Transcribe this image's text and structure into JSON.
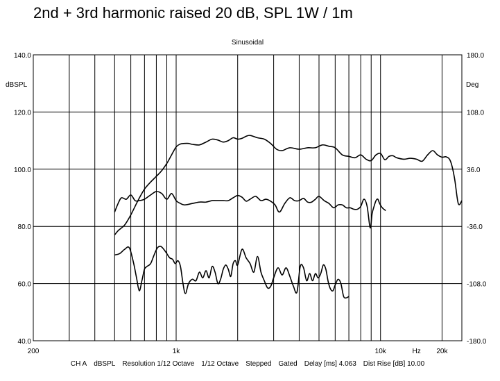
{
  "title": "2nd + 3rd harmonic raised 20 dB, SPL 1W / 1m",
  "chart_data": {
    "type": "line",
    "subtitle": "Sinusoidal",
    "x_scale": "log",
    "xlim": [
      200,
      25000
    ],
    "ylim": [
      40,
      140
    ],
    "y2lim": [
      -180,
      180
    ],
    "ylabel": "dBSPL",
    "y2label": "Deg",
    "xunit": "Hz",
    "grid": true,
    "y_ticks": [
      "140.0",
      "120.0",
      "100.0",
      "80.0",
      "60.0",
      "40.0"
    ],
    "y2_ticks": [
      "180.0",
      "108.0",
      "36.0",
      "-36.0",
      "-108.0",
      "-180.0"
    ],
    "x_tick_labels": [
      {
        "value": 200,
        "label": "200"
      },
      {
        "value": 1000,
        "label": "1k"
      },
      {
        "value": 10000,
        "label": "10k"
      },
      {
        "value": 15000,
        "label": "Hz"
      },
      {
        "value": 20000,
        "label": "20k"
      }
    ],
    "footer_items": [
      "CH A",
      "dBSPL",
      "Resolution 1/12 Octave",
      "1/12 Octave",
      "Stepped",
      "Gated",
      "Delay [ms] 4.063",
      "Dist Rise [dB] 10.00"
    ],
    "series": [
      {
        "x": [
          500,
          520,
          560,
          600,
          650,
          700,
          750,
          800,
          850,
          900,
          950,
          1000,
          1050,
          1100,
          1150,
          1200,
          1300,
          1400,
          1500,
          1600,
          1700,
          1800,
          1900,
          2000,
          2100,
          2200,
          2300,
          2500,
          2700,
          2900,
          3100,
          3300,
          3600,
          4000,
          4400,
          4800,
          5200,
          5600,
          6000,
          6500,
          7000,
          7500,
          8000,
          8500,
          9000,
          9500,
          10000,
          10500,
          11000,
          11500,
          12000,
          13000,
          14000,
          15000,
          16000,
          17000,
          18000,
          19000,
          20000,
          21000,
          22000,
          23000,
          24000,
          25000
        ],
        "values": [
          77,
          78.5,
          80.5,
          84,
          89,
          93,
          95.5,
          97.5,
          99.5,
          102,
          105,
          107.8,
          108.8,
          109,
          109,
          108.7,
          108.5,
          109.5,
          110.5,
          110.2,
          109.5,
          110,
          111,
          110.5,
          110.8,
          111.5,
          111.8,
          111,
          110.5,
          109,
          107,
          106.5,
          107.5,
          107,
          107.5,
          107.5,
          108.5,
          108,
          107.5,
          105,
          104.5,
          104,
          105,
          103.5,
          103,
          105,
          105.5,
          103.3,
          104.5,
          104.7,
          104,
          103.5,
          103.8,
          103.5,
          102.8,
          105,
          106.5,
          105,
          104.2,
          104.3,
          102.8,
          97,
          88,
          89
        ]
      },
      {
        "x": [
          500,
          520,
          540,
          570,
          600,
          630,
          660,
          700,
          750,
          800,
          850,
          900,
          950,
          1000,
          1050,
          1100,
          1200,
          1300,
          1400,
          1500,
          1600,
          1700,
          1800,
          1900,
          2000,
          2100,
          2200,
          2300,
          2450,
          2600,
          2750,
          2900,
          3050,
          3200,
          3400,
          3600,
          3800,
          4000,
          4200,
          4400,
          4600,
          4800,
          5000,
          5300,
          5600,
          5900,
          6200,
          6500,
          6800,
          7100,
          7400,
          7700,
          8000,
          8300,
          8600,
          8900,
          9100,
          9300,
          9500,
          9700,
          9900,
          10200,
          10600
        ],
        "values": [
          85,
          88,
          90,
          89.5,
          91,
          89,
          89,
          89.5,
          91,
          92.2,
          91.5,
          89.5,
          91.5,
          89,
          88,
          87.5,
          88,
          88.5,
          88.5,
          89,
          89,
          89,
          89,
          90,
          90.8,
          90.2,
          88.8,
          89.5,
          90.5,
          89,
          89.5,
          88.8,
          87.5,
          85,
          88,
          90,
          89,
          89,
          89.8,
          88.5,
          88.5,
          89.5,
          90.5,
          89,
          88,
          86.5,
          87.5,
          87.5,
          86.5,
          86.5,
          86,
          86,
          87,
          89.5,
          87,
          79.5,
          84.5,
          87,
          89,
          89.5,
          88,
          86.5,
          85.5
        ]
      },
      {
        "x": [
          500,
          530,
          560,
          590,
          620,
          640,
          660,
          680,
          700,
          720,
          750,
          780,
          810,
          840,
          870,
          900,
          930,
          960,
          990,
          1020,
          1050,
          1080,
          1110,
          1150,
          1200,
          1250,
          1300,
          1350,
          1400,
          1450,
          1500,
          1550,
          1600,
          1650,
          1700,
          1750,
          1800,
          1850,
          1900,
          1950,
          2000,
          2100,
          2200,
          2300,
          2400,
          2500,
          2600,
          2700,
          2800,
          2900,
          3000,
          3150,
          3300,
          3450,
          3600,
          3750,
          3900,
          4050,
          4200,
          4350,
          4500,
          4650,
          4800,
          4950,
          5100,
          5250,
          5400,
          5550,
          5700,
          5850,
          6000,
          6200,
          6400,
          6600,
          6800,
          7000
        ],
        "values": [
          70,
          70.5,
          72,
          72.5,
          67,
          62,
          57.5,
          61,
          65,
          66,
          67,
          70,
          72.5,
          73,
          72,
          70.5,
          69,
          68.5,
          67,
          68,
          66,
          60,
          56.5,
          60,
          61.5,
          61,
          64,
          62,
          64.5,
          62,
          66,
          64,
          60,
          61.5,
          65,
          66.5,
          65,
          62.5,
          67,
          68,
          66.5,
          72,
          69,
          67,
          64,
          69.5,
          64,
          61,
          58.5,
          59,
          62,
          65.5,
          63,
          65.5,
          62.5,
          59,
          57,
          66,
          65.5,
          61,
          63.5,
          61,
          63.5,
          62,
          63.5,
          66.5,
          65,
          60.5,
          58,
          57.5,
          59.5,
          61.5,
          60,
          55.5,
          55,
          55.5
        ]
      }
    ]
  }
}
